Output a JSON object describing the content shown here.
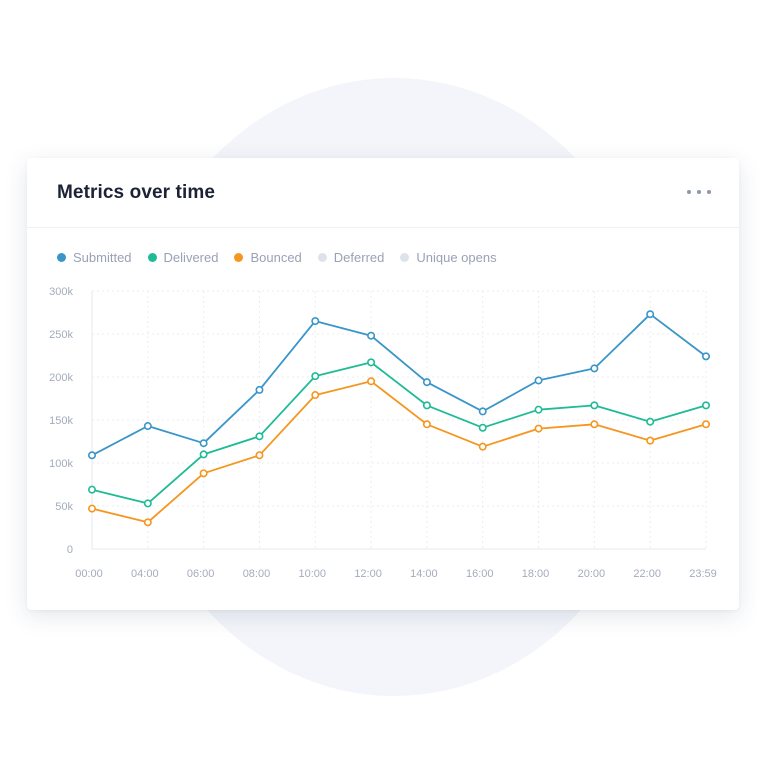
{
  "card": {
    "title": "Metrics over time",
    "menu_icon": "more-horizontal-icon"
  },
  "legend": [
    {
      "label": "Submitted",
      "color": "#3a95c9",
      "active": true
    },
    {
      "label": "Delivered",
      "color": "#1fbb95",
      "active": true
    },
    {
      "label": "Bounced",
      "color": "#f5961f",
      "active": true
    },
    {
      "label": "Deferred",
      "color": "#dde2eb",
      "active": false
    },
    {
      "label": "Unique opens",
      "color": "#dde2eb",
      "active": false
    }
  ],
  "colors": {
    "background_circle": "#f3f5fa",
    "grid": "#e9edf2",
    "axis_text": "#a3acbd"
  },
  "chart_data": {
    "type": "line",
    "title": "Metrics over time",
    "xlabel": "",
    "ylabel": "",
    "x": [
      "00:00",
      "04:00",
      "06:00",
      "08:00",
      "10:00",
      "12:00",
      "14:00",
      "16:00",
      "18:00",
      "20:00",
      "22:00",
      "23:59"
    ],
    "y_ticks": [
      "0",
      "50k",
      "100k",
      "150k",
      "200k",
      "250k",
      "300k"
    ],
    "ylim": [
      0,
      300000
    ],
    "grid": true,
    "legend_position": "top-left",
    "series": [
      {
        "name": "Submitted",
        "color": "#3a95c9",
        "values": [
          109000,
          143000,
          123000,
          185000,
          265000,
          248000,
          194000,
          160000,
          196000,
          210000,
          273000,
          224000
        ]
      },
      {
        "name": "Delivered",
        "color": "#1fbb95",
        "values": [
          69000,
          53000,
          110000,
          131000,
          201000,
          217000,
          167000,
          141000,
          162000,
          167000,
          148000,
          167000
        ]
      },
      {
        "name": "Bounced",
        "color": "#f5961f",
        "values": [
          47000,
          31000,
          88000,
          109000,
          179000,
          195000,
          145000,
          119000,
          140000,
          145000,
          126000,
          145000
        ]
      },
      {
        "name": "Deferred",
        "color": "#dde2eb",
        "values": [],
        "hidden": true
      },
      {
        "name": "Unique opens",
        "color": "#dde2eb",
        "values": [],
        "hidden": true
      }
    ]
  }
}
